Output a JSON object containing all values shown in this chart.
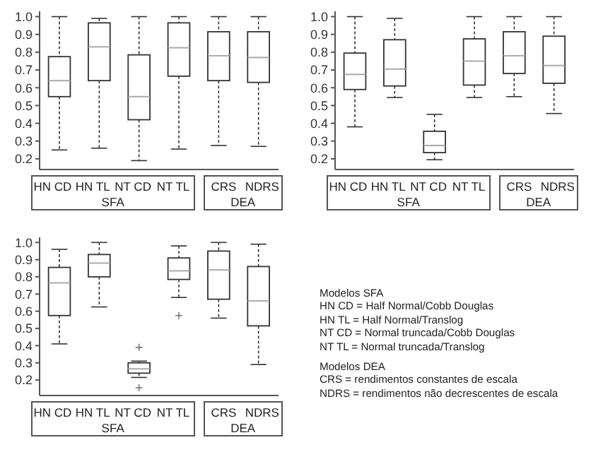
{
  "chart_data": [
    {
      "type": "box",
      "categories": [
        "HN CD",
        "HN TL",
        "NT CD",
        "NT TL",
        "CRS",
        "NDRS"
      ],
      "ylim": [
        0.14,
        1.03
      ],
      "yticks": [
        {
          "value": 0.2,
          "label": "0.2"
        },
        {
          "value": 0.3,
          "label": "0.3"
        },
        {
          "value": 0.4,
          "label": "0.4"
        },
        {
          "value": 0.5,
          "label": "0.5"
        },
        {
          "value": 0.6,
          "label": "0.6"
        },
        {
          "value": 0.7,
          "label": "0.7"
        },
        {
          "value": 0.8,
          "label": "0.8"
        },
        {
          "value": 0.9,
          "label": "0.9"
        },
        {
          "value": 1.0,
          "label": "1.0"
        }
      ],
      "annotations": [
        "SFA",
        "DEA"
      ],
      "boxes": [
        {
          "low": 0.25,
          "q1": 0.55,
          "median": 0.64,
          "q3": 0.775,
          "high": 1.0
        },
        {
          "low": 0.26,
          "q1": 0.64,
          "median": 0.83,
          "q3": 0.965,
          "high": 0.99
        },
        {
          "low": 0.19,
          "q1": 0.42,
          "median": 0.55,
          "q3": 0.785,
          "high": 1.0
        },
        {
          "low": 0.255,
          "q1": 0.665,
          "median": 0.825,
          "q3": 0.965,
          "high": 1.0
        },
        {
          "low": 0.275,
          "q1": 0.64,
          "median": 0.78,
          "q3": 0.915,
          "high": 1.0
        },
        {
          "low": 0.27,
          "q1": 0.63,
          "median": 0.77,
          "q3": 0.915,
          "high": 1.0
        }
      ]
    },
    {
      "type": "box",
      "categories": [
        "HN CD",
        "HN TL",
        "NT CD",
        "NT TL",
        "CRS",
        "NDRS"
      ],
      "ylim": [
        0.14,
        1.03
      ],
      "yticks": [
        {
          "value": 0.2,
          "label": "0.2"
        },
        {
          "value": 0.3,
          "label": "0.3"
        },
        {
          "value": 0.4,
          "label": "0.4"
        },
        {
          "value": 0.5,
          "label": "0.5"
        },
        {
          "value": 0.6,
          "label": "0.6"
        },
        {
          "value": 0.7,
          "label": "0.7"
        },
        {
          "value": 0.8,
          "label": "0.8"
        },
        {
          "value": 0.9,
          "label": "0.9"
        },
        {
          "value": 1.0,
          "label": "1.0"
        }
      ],
      "annotations": [
        "SFA",
        "DEA"
      ],
      "boxes": [
        {
          "low": 0.38,
          "q1": 0.59,
          "median": 0.675,
          "q3": 0.795,
          "high": 1.0
        },
        {
          "low": 0.545,
          "q1": 0.61,
          "median": 0.705,
          "q3": 0.87,
          "high": 0.99
        },
        {
          "low": 0.195,
          "q1": 0.235,
          "median": 0.275,
          "q3": 0.355,
          "high": 0.45
        },
        {
          "low": 0.545,
          "q1": 0.615,
          "median": 0.75,
          "q3": 0.875,
          "high": 1.0
        },
        {
          "low": 0.55,
          "q1": 0.68,
          "median": 0.78,
          "q3": 0.915,
          "high": 1.0
        },
        {
          "low": 0.455,
          "q1": 0.625,
          "median": 0.725,
          "q3": 0.89,
          "high": 1.0
        }
      ]
    },
    {
      "type": "box",
      "categories": [
        "HN CD",
        "HN TL",
        "NT CD",
        "NT TL",
        "CRS",
        "NDRS"
      ],
      "ylim": [
        0.11,
        1.03
      ],
      "yticks": [
        {
          "value": 0.2,
          "label": "0.2"
        },
        {
          "value": 0.3,
          "label": "0.3"
        },
        {
          "value": 0.4,
          "label": "0.4"
        },
        {
          "value": 0.5,
          "label": "0.5"
        },
        {
          "value": 0.6,
          "label": "0.6"
        },
        {
          "value": 0.7,
          "label": "0.7"
        },
        {
          "value": 0.8,
          "label": "0.8"
        },
        {
          "value": 0.9,
          "label": "0.9"
        },
        {
          "value": 1.0,
          "label": "1.0"
        }
      ],
      "annotations": [
        "SFA",
        "DEA"
      ],
      "boxes": [
        {
          "low": 0.41,
          "q1": 0.575,
          "median": 0.765,
          "q3": 0.855,
          "high": 0.96
        },
        {
          "low": 0.625,
          "q1": 0.8,
          "median": 0.88,
          "q3": 0.93,
          "high": 1.0
        },
        {
          "low": 0.215,
          "q1": 0.24,
          "median": 0.265,
          "q3": 0.3,
          "high": 0.31,
          "outliers": [
            0.39,
            0.155
          ]
        },
        {
          "low": 0.68,
          "q1": 0.785,
          "median": 0.835,
          "q3": 0.91,
          "high": 0.98,
          "outliers": [
            0.575
          ]
        },
        {
          "low": 0.56,
          "q1": 0.67,
          "median": 0.84,
          "q3": 0.95,
          "high": 1.0
        },
        {
          "low": 0.29,
          "q1": 0.515,
          "median": 0.66,
          "q3": 0.86,
          "high": 0.99
        }
      ]
    },
    {
      "type": "other",
      "annotations": [
        "Modelos SFA",
        "HN CD = Half Normal/Cobb Douglas",
        "HN TL = Half Normal/Translog",
        "NT CD = Normal truncada/Cobb Douglas",
        "NT TL = Normal truncada/Translog",
        "Modelos DEA",
        "CRS = rendimentos constantes de escala",
        "NDRS = rendimentos não decrescentes de escala"
      ]
    }
  ]
}
